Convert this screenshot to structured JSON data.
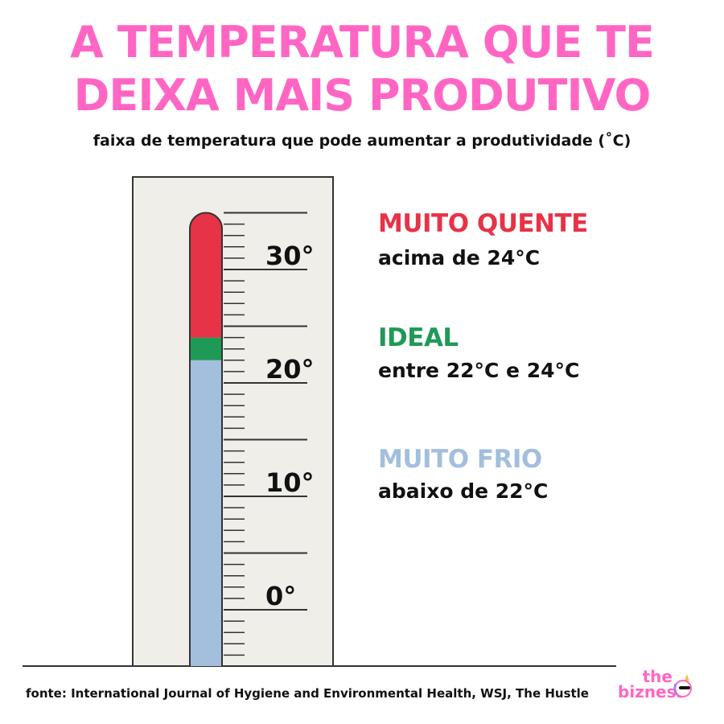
{
  "header": {
    "title_line1": "A TEMPERATURA QUE TE",
    "title_line2": "DEIXA MAIS PRODUTIVO",
    "subtitle": "faixa de temperatura que pode aumentar a produtividade (˚C)"
  },
  "chart_data": {
    "type": "thermometer",
    "ylim": [
      -5,
      35
    ],
    "tick_labels": [
      "30°",
      "20°",
      "10°",
      "0°"
    ],
    "tick_values": [
      30,
      20,
      10,
      0
    ],
    "ranges": [
      {
        "name": "MUITO FRIO",
        "description": "abaixo de 22°C",
        "from": -5,
        "to": 22,
        "color": "#a3bfdd"
      },
      {
        "name": "IDEAL",
        "description": "entre 22°C e 24°C",
        "from": 22,
        "to": 24,
        "color": "#1f9a56"
      },
      {
        "name": "MUITO QUENTE",
        "description": "acima de 24°C",
        "from": 24,
        "to": 35,
        "color": "#e63347"
      }
    ]
  },
  "legend": {
    "hot_label": "MUITO QUENTE",
    "hot_desc": "acima de 24°C",
    "ideal_label": "IDEAL",
    "ideal_desc": "entre 22°C e 24°C",
    "cold_label": "MUITO FRIO",
    "cold_desc": "abaixo de 22°C"
  },
  "colors": {
    "accent": "#ff66c4",
    "hot": "#e63347",
    "ideal": "#1f9a56",
    "cold": "#a3bfdd"
  },
  "footer": {
    "source": "fonte: International Journal of Hygiene and Environmental Health, WSJ, The Hustle"
  },
  "brand": {
    "line1": "the",
    "line2": "bizness",
    "icon": "unicorn-sunglasses-icon"
  }
}
